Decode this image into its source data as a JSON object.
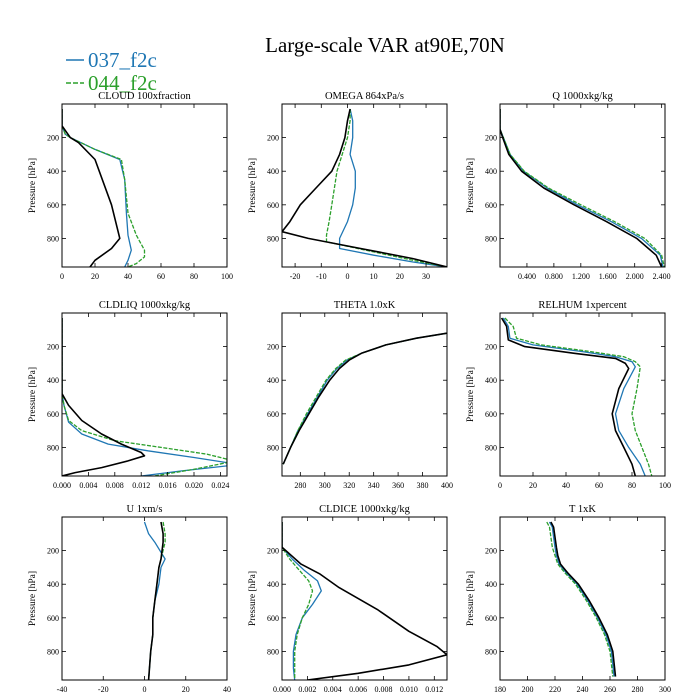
{
  "figure": {
    "title": "Large-scale VAR at90E,70N",
    "legend": [
      {
        "name": "037_f2c",
        "color": "#1f77b4",
        "dash": false
      },
      {
        "name": "044_f2c",
        "color": "#2ca02c",
        "dash": true
      }
    ]
  },
  "chart_data": [
    {
      "type": "line",
      "title": "CLOUD 100xfraction",
      "ylabel": "Pressure [hPa]",
      "ylim": [
        0,
        970
      ],
      "xlim": [
        0,
        100
      ],
      "xticks": [
        0,
        20,
        40,
        60,
        80,
        100
      ],
      "xtick_labels": [
        "0",
        "20",
        "40",
        "60",
        "80",
        "100"
      ],
      "yticks": [
        200,
        400,
        600,
        800
      ],
      "series": [
        {
          "color": "#1f77b4",
          "dash": false,
          "x": [
            0,
            0,
            2,
            5,
            20,
            35,
            38,
            39,
            40,
            42,
            40,
            38
          ],
          "y": [
            30,
            130,
            180,
            200,
            270,
            330,
            450,
            650,
            780,
            870,
            930,
            970
          ]
        },
        {
          "color": "#2ca02c",
          "dash": true,
          "x": [
            0,
            0,
            2,
            5,
            20,
            36,
            38,
            40,
            45,
            50,
            50,
            45,
            40
          ],
          "y": [
            30,
            130,
            180,
            200,
            270,
            330,
            450,
            650,
            780,
            870,
            910,
            950,
            970
          ]
        },
        {
          "color": "#000000",
          "dash": false,
          "x": [
            0,
            0,
            5,
            10,
            20,
            30,
            35,
            30,
            20,
            17
          ],
          "y": [
            30,
            130,
            200,
            230,
            330,
            600,
            800,
            860,
            930,
            970
          ]
        }
      ]
    },
    {
      "type": "line",
      "title": "OMEGA 864xPa/s",
      "ylabel": "Pressure [hPa]",
      "ylim": [
        0,
        970
      ],
      "xlim": [
        -25,
        38
      ],
      "xticks": [
        -20,
        -10,
        0,
        10,
        20,
        30
      ],
      "xtick_labels": [
        "-20",
        "-10",
        "0",
        "10",
        "20",
        "30"
      ],
      "yticks": [
        200,
        400,
        600,
        800
      ],
      "series": [
        {
          "color": "#1f77b4",
          "dash": false,
          "x": [
            1,
            2,
            2,
            1,
            3,
            3,
            2,
            0,
            -3,
            -3,
            10,
            25,
            38
          ],
          "y": [
            30,
            100,
            200,
            300,
            400,
            500,
            600,
            700,
            800,
            860,
            900,
            940,
            970
          ]
        },
        {
          "color": "#2ca02c",
          "dash": true,
          "x": [
            1,
            1,
            0,
            -2,
            -4,
            -5,
            -6,
            -7,
            -8,
            -8,
            10,
            25,
            38
          ],
          "y": [
            30,
            100,
            200,
            300,
            400,
            500,
            600,
            700,
            780,
            820,
            880,
            930,
            970
          ]
        },
        {
          "color": "#000000",
          "dash": false,
          "x": [
            1,
            0,
            -1,
            -3,
            -6,
            -12,
            -18,
            -22,
            -25,
            -15,
            5,
            25,
            38
          ],
          "y": [
            30,
            100,
            200,
            300,
            400,
            500,
            600,
            700,
            760,
            800,
            860,
            920,
            970
          ]
        }
      ]
    },
    {
      "type": "line",
      "title": "Q 1000xkg/kg",
      "ylabel": "Pressure [hPa]",
      "ylim": [
        0,
        970
      ],
      "xlim": [
        0,
        2.45
      ],
      "xticks": [
        0.4,
        0.8,
        1.2,
        1.6,
        2.0,
        2.4
      ],
      "xtick_labels": [
        "0.400",
        "0.800",
        "1.200",
        "1.600",
        "2.000",
        "2.400"
      ],
      "yticks": [
        200,
        400,
        600,
        800
      ],
      "series": [
        {
          "color": "#1f77b4",
          "dash": false,
          "x": [
            0.0,
            0.0,
            0.05,
            0.15,
            0.35,
            0.7,
            1.15,
            1.65,
            2.1,
            2.38,
            2.42
          ],
          "y": [
            30,
            150,
            200,
            300,
            400,
            500,
            600,
            700,
            800,
            900,
            970
          ]
        },
        {
          "color": "#2ca02c",
          "dash": true,
          "x": [
            0.0,
            0.0,
            0.05,
            0.15,
            0.36,
            0.72,
            1.2,
            1.7,
            2.15,
            2.4,
            2.44
          ],
          "y": [
            30,
            150,
            200,
            300,
            400,
            500,
            600,
            700,
            800,
            900,
            970
          ]
        },
        {
          "color": "#000000",
          "dash": false,
          "x": [
            0.0,
            0.0,
            0.04,
            0.13,
            0.32,
            0.65,
            1.1,
            1.58,
            2.03,
            2.32,
            2.4
          ],
          "y": [
            30,
            150,
            200,
            300,
            400,
            500,
            600,
            700,
            800,
            900,
            970
          ]
        }
      ]
    },
    {
      "type": "line",
      "title": "CLDLIQ 1000xkg/kg",
      "ylabel": "Pressure [hPa]",
      "ylim": [
        0,
        970
      ],
      "xlim": [
        0,
        0.025
      ],
      "xticks": [
        0,
        0.004,
        0.008,
        0.012,
        0.016,
        0.02,
        0.024
      ],
      "xtick_labels": [
        "0.000",
        "0.004",
        "0.008",
        "0.012",
        "0.016",
        "0.020",
        "0.024"
      ],
      "yticks": [
        200,
        400,
        600,
        800
      ],
      "series": [
        {
          "color": "#1f77b4",
          "dash": false,
          "x": [
            0,
            0,
            0.0003,
            0.001,
            0.003,
            0.007,
            0.013,
            0.02,
            0.025,
            0.025,
            0.018,
            0.012
          ],
          "y": [
            30,
            480,
            550,
            650,
            720,
            780,
            820,
            860,
            890,
            910,
            940,
            970
          ]
        },
        {
          "color": "#2ca02c",
          "dash": true,
          "x": [
            0,
            0,
            0.0003,
            0.001,
            0.003,
            0.008,
            0.015,
            0.022,
            0.025,
            0.025,
            0.02,
            0.014
          ],
          "y": [
            30,
            480,
            550,
            640,
            700,
            760,
            800,
            840,
            870,
            890,
            930,
            970
          ]
        },
        {
          "color": "#000000",
          "dash": false,
          "x": [
            0,
            0,
            0.001,
            0.003,
            0.006,
            0.009,
            0.012,
            0.0125,
            0.01,
            0.006,
            0.002,
            0.0
          ],
          "y": [
            30,
            480,
            550,
            640,
            720,
            780,
            830,
            850,
            880,
            920,
            950,
            970
          ]
        }
      ]
    },
    {
      "type": "line",
      "title": "THETA 1.0xK",
      "ylabel": "",
      "ylim": [
        0,
        970
      ],
      "xlim": [
        265,
        400
      ],
      "xticks": [
        280,
        300,
        320,
        340,
        360,
        380,
        400
      ],
      "xtick_labels": [
        "280",
        "300",
        "320",
        "340",
        "360",
        "380",
        "400"
      ],
      "yticks": [
        200,
        400,
        600,
        800
      ],
      "series": [
        {
          "color": "#1f77b4",
          "dash": false,
          "x": [
            400,
            375,
            350,
            330,
            318,
            310,
            302,
            294,
            286,
            278,
            272,
            266
          ],
          "y": [
            120,
            150,
            190,
            240,
            280,
            330,
            400,
            500,
            600,
            700,
            800,
            900
          ]
        },
        {
          "color": "#2ca02c",
          "dash": true,
          "x": [
            400,
            375,
            350,
            330,
            317,
            309,
            301,
            293,
            285,
            278,
            272,
            266
          ],
          "y": [
            120,
            150,
            190,
            240,
            280,
            330,
            400,
            500,
            600,
            700,
            800,
            900
          ]
        },
        {
          "color": "#000000",
          "dash": false,
          "x": [
            400,
            375,
            350,
            330,
            320,
            312,
            304,
            295,
            287,
            279,
            272,
            266
          ],
          "y": [
            120,
            150,
            190,
            240,
            280,
            330,
            400,
            500,
            600,
            700,
            800,
            900
          ]
        }
      ]
    },
    {
      "type": "line",
      "title": "RELHUM 1xpercent",
      "ylabel": "Pressure [hPa]",
      "ylim": [
        0,
        970
      ],
      "xlim": [
        0,
        100
      ],
      "xticks": [
        0,
        20,
        40,
        60,
        80,
        100
      ],
      "xtick_labels": [
        "0",
        "20",
        "40",
        "60",
        "80",
        "100"
      ],
      "yticks": [
        200,
        400,
        600,
        800
      ],
      "series": [
        {
          "color": "#1f77b4",
          "dash": false,
          "x": [
            2,
            5,
            6,
            20,
            50,
            70,
            80,
            82,
            75,
            70,
            72,
            78,
            85,
            88
          ],
          "y": [
            30,
            80,
            150,
            190,
            230,
            260,
            290,
            320,
            450,
            600,
            700,
            800,
            900,
            970
          ]
        },
        {
          "color": "#2ca02c",
          "dash": true,
          "x": [
            3,
            8,
            10,
            25,
            55,
            75,
            82,
            85,
            83,
            80,
            82,
            86,
            90,
            92
          ],
          "y": [
            30,
            80,
            150,
            190,
            230,
            260,
            290,
            320,
            450,
            600,
            700,
            800,
            900,
            970
          ]
        },
        {
          "color": "#000000",
          "dash": false,
          "x": [
            1,
            4,
            5,
            15,
            45,
            70,
            76,
            78,
            72,
            68,
            70,
            75,
            80,
            82
          ],
          "y": [
            30,
            80,
            160,
            200,
            240,
            270,
            300,
            330,
            450,
            600,
            700,
            800,
            900,
            970
          ]
        }
      ]
    },
    {
      "type": "line",
      "title": "U 1xm/s",
      "ylabel": "Pressure [hPa]",
      "ylim": [
        0,
        970
      ],
      "xlim": [
        -40,
        40
      ],
      "xticks": [
        -40,
        -20,
        0,
        20,
        40
      ],
      "xtick_labels": [
        "-40",
        "-20",
        "0",
        "20",
        "40"
      ],
      "yticks": [
        200,
        400,
        600,
        800
      ],
      "series": [
        {
          "color": "#1f77b4",
          "dash": false,
          "x": [
            0,
            2,
            5,
            10,
            8,
            7,
            5,
            4,
            4,
            3,
            2
          ],
          "y": [
            30,
            100,
            150,
            250,
            300,
            400,
            500,
            600,
            700,
            800,
            970
          ]
        },
        {
          "color": "#2ca02c",
          "dash": true,
          "x": [
            9,
            10,
            10,
            8,
            7,
            6,
            5,
            4,
            4,
            3,
            2
          ],
          "y": [
            30,
            100,
            150,
            250,
            300,
            400,
            500,
            600,
            700,
            800,
            970
          ]
        },
        {
          "color": "#000000",
          "dash": false,
          "x": [
            8,
            9,
            9,
            8,
            7,
            6,
            5,
            4,
            4,
            3,
            2
          ],
          "y": [
            30,
            100,
            150,
            250,
            300,
            400,
            500,
            600,
            700,
            800,
            970
          ]
        }
      ]
    },
    {
      "type": "line",
      "title": "CLDICE 1000xkg/kg",
      "ylabel": "Pressure [hPa]",
      "ylim": [
        0,
        970
      ],
      "xlim": [
        0,
        0.013
      ],
      "xticks": [
        0,
        0.002,
        0.004,
        0.006,
        0.008,
        0.01,
        0.012
      ],
      "xtick_labels": [
        "0.000",
        "0.002",
        "0.004",
        "0.006",
        "0.008",
        "0.010",
        "0.012"
      ],
      "yticks": [
        200,
        400,
        600,
        800
      ],
      "series": [
        {
          "color": "#1f77b4",
          "dash": false,
          "x": [
            0,
            0,
            0.0008,
            0.0018,
            0.0028,
            0.0031,
            0.0024,
            0.0016,
            0.0011,
            0.0009,
            0.0009,
            0.001
          ],
          "y": [
            30,
            180,
            250,
            320,
            380,
            440,
            520,
            600,
            700,
            800,
            900,
            970
          ]
        },
        {
          "color": "#2ca02c",
          "dash": true,
          "x": [
            0,
            0,
            0.0006,
            0.0014,
            0.0021,
            0.0024,
            0.0021,
            0.0016,
            0.0012,
            0.001,
            0.001,
            0.001
          ],
          "y": [
            30,
            180,
            250,
            320,
            380,
            440,
            520,
            600,
            700,
            800,
            900,
            970
          ]
        },
        {
          "color": "#000000",
          "dash": false,
          "x": [
            0,
            0,
            0.0015,
            0.003,
            0.0045,
            0.0075,
            0.01,
            0.0122,
            0.013,
            0.01,
            0.006,
            0.002
          ],
          "y": [
            30,
            180,
            280,
            340,
            420,
            550,
            680,
            770,
            820,
            880,
            930,
            970
          ]
        }
      ]
    },
    {
      "type": "line",
      "title": "T 1xK",
      "ylabel": "Pressure [hPa]",
      "ylim": [
        0,
        970
      ],
      "xlim": [
        180,
        300
      ],
      "xticks": [
        180,
        200,
        220,
        240,
        260,
        280,
        300
      ],
      "xtick_labels": [
        "180",
        "200",
        "220",
        "240",
        "260",
        "280",
        "300"
      ],
      "yticks": [
        200,
        400,
        600,
        800
      ],
      "series": [
        {
          "color": "#1f77b4",
          "dash": false,
          "x": [
            216,
            218,
            219,
            220,
            221,
            223,
            228,
            236,
            244,
            251,
            257,
            261,
            263
          ],
          "y": [
            30,
            60,
            120,
            180,
            230,
            280,
            330,
            400,
            500,
            600,
            700,
            800,
            950
          ]
        },
        {
          "color": "#2ca02c",
          "dash": true,
          "x": [
            214,
            216,
            217,
            218,
            220,
            222,
            227,
            235,
            243,
            250,
            256,
            260,
            262
          ],
          "y": [
            30,
            60,
            120,
            180,
            230,
            280,
            330,
            400,
            500,
            600,
            700,
            800,
            950
          ]
        },
        {
          "color": "#000000",
          "dash": false,
          "x": [
            217,
            219,
            220,
            221,
            222,
            224,
            229,
            237,
            245,
            252,
            258,
            262,
            264
          ],
          "y": [
            30,
            60,
            120,
            180,
            230,
            280,
            330,
            400,
            500,
            600,
            700,
            800,
            950
          ]
        }
      ]
    }
  ]
}
